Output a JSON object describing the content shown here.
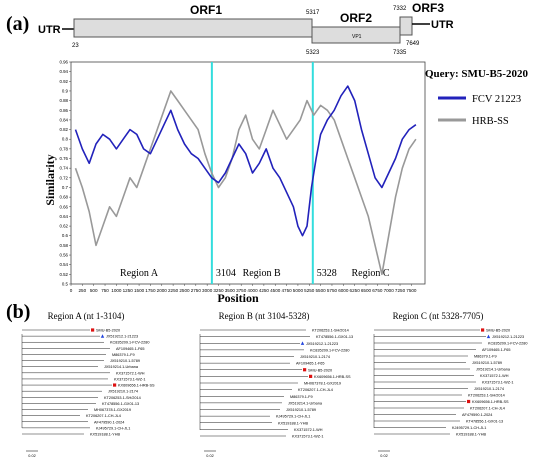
{
  "panel_a": {
    "label": "(a)",
    "genome": {
      "utr_left": "UTR",
      "utr_right": "UTR",
      "orf1": "ORF1",
      "orf2": "ORF2",
      "orf3": "ORF3",
      "vp1": "VP1",
      "pos_23": "23",
      "pos_5317": "5317",
      "pos_5323": "5323",
      "pos_7332": "7332",
      "pos_7335": "7335",
      "pos_7649": "7649"
    },
    "legend": {
      "query": "Query: SMU-B5-2020",
      "series1": "FCV  21223",
      "series2": "HRB-SS",
      "color1": "#2222bb",
      "color2": "#999999"
    }
  },
  "chart_data": {
    "type": "line",
    "xlabel": "Position",
    "ylabel": "Similarity",
    "xlim": [
      0,
      7800
    ],
    "ylim": [
      0.5,
      0.96
    ],
    "xticks": [
      "0",
      "250",
      "500",
      "750",
      "1000",
      "1250",
      "1500",
      "1750",
      "2000",
      "2250",
      "2500",
      "2750",
      "3000",
      "3250",
      "3500",
      "3750",
      "4000",
      "4250",
      "4500",
      "4750",
      "5000",
      "5250",
      "5500",
      "5750",
      "6000",
      "6250",
      "6500",
      "6750",
      "7000",
      "7250",
      "7500"
    ],
    "yticks": [
      "0.5",
      "0.52",
      "0.54",
      "0.56",
      "0.58",
      "0.6",
      "0.62",
      "0.64",
      "0.66",
      "0.68",
      "0.7",
      "0.72",
      "0.74",
      "0.76",
      "0.78",
      "0.8",
      "0.82",
      "0.84",
      "0.86",
      "0.88",
      "0.9",
      "0.92",
      "0.94",
      "0.96"
    ],
    "breakpoints": [
      {
        "position": 3104,
        "label": "3104"
      },
      {
        "position": 5328,
        "label": "5328"
      }
    ],
    "regions": [
      {
        "label": "Region A",
        "center": 1500
      },
      {
        "label": "Region B",
        "center": 4200
      },
      {
        "label": "Region C",
        "center": 6600
      }
    ],
    "series": [
      {
        "name": "FCV  21223",
        "color": "#2222bb",
        "x": [
          100,
          250,
          400,
          550,
          700,
          850,
          1000,
          1150,
          1300,
          1450,
          1600,
          1750,
          1900,
          2050,
          2200,
          2350,
          2500,
          2650,
          2800,
          2950,
          3100,
          3250,
          3400,
          3550,
          3700,
          3850,
          4000,
          4150,
          4300,
          4450,
          4600,
          4750,
          4900,
          5000,
          5100,
          5200,
          5300,
          5400,
          5500,
          5650,
          5800,
          5950,
          6100,
          6250,
          6400,
          6550,
          6700,
          6850,
          7000,
          7150,
          7300,
          7450,
          7600
        ],
        "y": [
          0.82,
          0.78,
          0.75,
          0.79,
          0.81,
          0.8,
          0.78,
          0.8,
          0.82,
          0.81,
          0.78,
          0.77,
          0.8,
          0.83,
          0.86,
          0.82,
          0.79,
          0.77,
          0.76,
          0.74,
          0.72,
          0.71,
          0.73,
          0.76,
          0.79,
          0.77,
          0.73,
          0.75,
          0.78,
          0.74,
          0.72,
          0.69,
          0.66,
          0.62,
          0.6,
          0.62,
          0.7,
          0.76,
          0.81,
          0.84,
          0.86,
          0.89,
          0.91,
          0.88,
          0.82,
          0.77,
          0.72,
          0.7,
          0.73,
          0.76,
          0.8,
          0.82,
          0.83
        ]
      },
      {
        "name": "HRB-SS",
        "color": "#999999",
        "x": [
          100,
          250,
          400,
          550,
          700,
          850,
          1000,
          1150,
          1300,
          1450,
          1600,
          1750,
          1900,
          2050,
          2200,
          2350,
          2500,
          2650,
          2800,
          2950,
          3100,
          3250,
          3400,
          3550,
          3700,
          3850,
          4000,
          4150,
          4300,
          4450,
          4600,
          4750,
          4900,
          5050,
          5200,
          5350,
          5500,
          5650,
          5800,
          5950,
          6100,
          6250,
          6400,
          6550,
          6700,
          6850,
          7000,
          7150,
          7300,
          7450,
          7600
        ],
        "y": [
          0.74,
          0.7,
          0.65,
          0.58,
          0.62,
          0.66,
          0.64,
          0.68,
          0.72,
          0.7,
          0.74,
          0.78,
          0.82,
          0.86,
          0.9,
          0.88,
          0.86,
          0.84,
          0.82,
          0.77,
          0.73,
          0.7,
          0.72,
          0.76,
          0.82,
          0.85,
          0.8,
          0.78,
          0.82,
          0.86,
          0.83,
          0.8,
          0.82,
          0.84,
          0.88,
          0.85,
          0.87,
          0.86,
          0.84,
          0.8,
          0.76,
          0.72,
          0.68,
          0.64,
          0.58,
          0.52,
          0.6,
          0.68,
          0.74,
          0.78,
          0.8
        ]
      }
    ]
  },
  "panel_b": {
    "label": "(b)",
    "trees": [
      {
        "title": "Region A (nt 1-3104)",
        "scale": "0.02",
        "leaves": [
          "SMU-B5-2020",
          "JX519212.1-21223",
          "KC835209.1-FCV-2280",
          "AF109465.1-F65",
          "M86379.1-F9",
          "JX519210.1-5789",
          "JX519214.1-Urbana",
          "KX371572.1-WH",
          "KX371573.1-WZ-1",
          "KX609656.1-HRB-SS",
          "JX519210.1-2174",
          "KT206253.1-SH/2014",
          "KT478556.1-GX01-13",
          "MH067378.1-GX2019",
          "KT206207.1-CH-JL4",
          "AF479590.1-2024",
          "KJ495729.1-CH-JL1",
          "KX519188.1-YHB"
        ]
      },
      {
        "title": "Region B (nt 3104-5328)",
        "scale": "0.02",
        "leaves": [
          "KT206253.1-SH/2014",
          "KT478556.1-GX01-13",
          "JX519212.1-21223",
          "KC835209.1-FCV-2280",
          "JX519210.1-2174",
          "AF109465.1-F65",
          "SMU-B5-2020",
          "KX609656.1-HRB-SS",
          "MH067378.1-GX2019",
          "KT206207.1-CH-JL4",
          "M86379.1-F9",
          "JX519214.1-Urbana",
          "JX519210.1-5789",
          "KJ495729.1-CH-JL1",
          "KX519188.1-YHB",
          "KX371572.1-WH",
          "KX371573.1-WZ-1"
        ]
      },
      {
        "title": "Region C (nt 5328-7705)",
        "scale": "0.02",
        "leaves": [
          "SMU-B5-2020",
          "JX519212.1-21223",
          "KC835209.1-FCV-2280",
          "AF109465.1-F65",
          "M86379.1-F9",
          "JX519210.1-5789",
          "JX519214.1-Urbana",
          "KX371572.1-WH",
          "KX371573.1-WZ-1",
          "JX519210.1-2174",
          "KT206253.1-SH/2014",
          "KX609656.1-HRB-SS",
          "KT206207.1-CH-JL4",
          "AF479590.1-2024",
          "KT478556.1-GX01-13",
          "KJ495729.1-CH-JL1",
          "KX519188.1-YHB"
        ]
      }
    ]
  }
}
